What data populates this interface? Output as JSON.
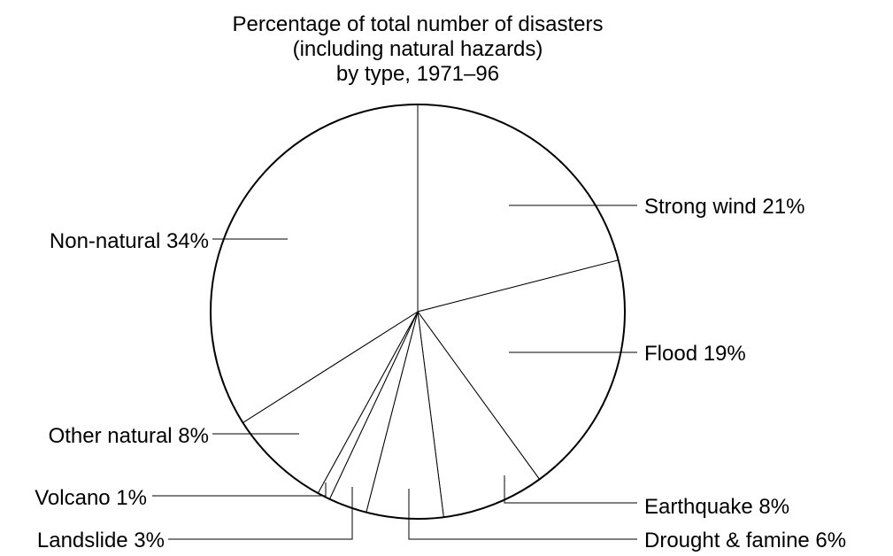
{
  "chart_data": {
    "type": "pie",
    "title_lines": [
      "Percentage of total number of disasters",
      "(including natural hazards)",
      "by type, 1971–96"
    ],
    "unit": "%",
    "slices": [
      {
        "label": "Strong wind",
        "value": 21,
        "text": "Strong wind 21%"
      },
      {
        "label": "Flood",
        "value": 19,
        "text": "Flood 19%"
      },
      {
        "label": "Earthquake",
        "value": 8,
        "text": "Earthquake 8%"
      },
      {
        "label": "Drought & famine",
        "value": 6,
        "text": "Drought & famine 6%"
      },
      {
        "label": "Landslide",
        "value": 3,
        "text": "Landslide 3%"
      },
      {
        "label": "Volcano",
        "value": 1,
        "text": "Volcano 1%"
      },
      {
        "label": "Other natural",
        "value": 8,
        "text": "Other natural 8%"
      },
      {
        "label": "Non-natural",
        "value": 34,
        "text": "Non-natural 34%"
      }
    ],
    "start_angle": "12 o'clock",
    "direction": "clockwise",
    "colors": {
      "fill": "#ffffff",
      "stroke": "#000000"
    },
    "legend": "none"
  }
}
